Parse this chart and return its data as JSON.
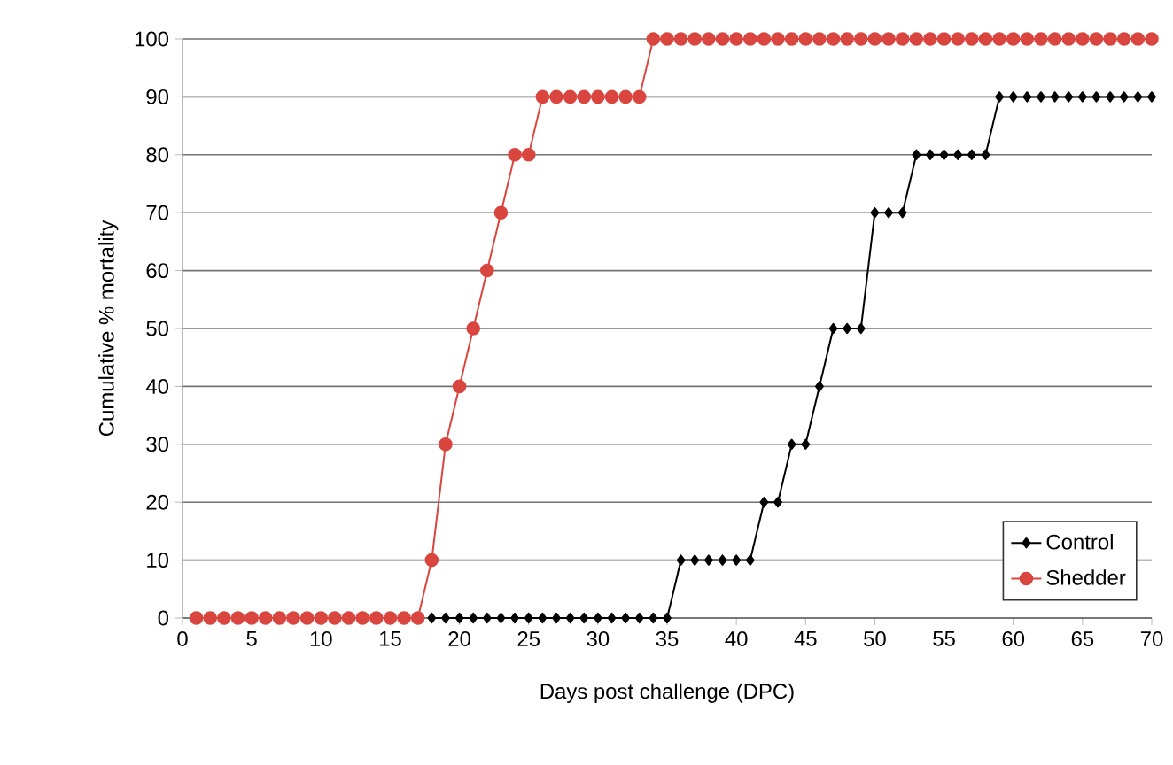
{
  "chart_data": {
    "type": "line",
    "xlabel": "Days post challenge (DPC)",
    "ylabel": "Cumulative % mortality",
    "x": [
      1,
      2,
      3,
      4,
      5,
      6,
      7,
      8,
      9,
      10,
      11,
      12,
      13,
      14,
      15,
      16,
      17,
      18,
      19,
      20,
      21,
      22,
      23,
      24,
      25,
      26,
      27,
      28,
      29,
      30,
      31,
      32,
      33,
      34,
      35,
      36,
      37,
      38,
      39,
      40,
      41,
      42,
      43,
      44,
      45,
      46,
      47,
      48,
      49,
      50,
      51,
      52,
      53,
      54,
      55,
      56,
      57,
      58,
      59,
      60,
      61,
      62,
      63,
      64,
      65,
      66,
      67,
      68,
      69,
      70
    ],
    "series": [
      {
        "name": "Control",
        "color": "#000000",
        "marker": "diamond",
        "values": [
          null,
          null,
          null,
          null,
          null,
          null,
          null,
          null,
          null,
          null,
          null,
          null,
          null,
          null,
          null,
          null,
          null,
          0,
          0,
          0,
          0,
          0,
          0,
          0,
          0,
          0,
          0,
          0,
          0,
          0,
          0,
          0,
          0,
          0,
          0,
          10,
          10,
          10,
          10,
          10,
          10,
          20,
          20,
          30,
          30,
          40,
          50,
          50,
          50,
          70,
          70,
          70,
          80,
          80,
          80,
          80,
          80,
          80,
          90,
          90,
          90,
          90,
          90,
          90,
          90,
          90,
          90,
          90,
          90,
          90
        ]
      },
      {
        "name": "Shedder",
        "color": "#d9453f",
        "marker": "circle",
        "values": [
          0,
          0,
          0,
          0,
          0,
          0,
          0,
          0,
          0,
          0,
          0,
          0,
          0,
          0,
          0,
          0,
          0,
          10,
          30,
          40,
          50,
          60,
          70,
          80,
          80,
          90,
          90,
          90,
          90,
          90,
          90,
          90,
          90,
          100,
          100,
          100,
          100,
          100,
          100,
          100,
          100,
          100,
          100,
          100,
          100,
          100,
          100,
          100,
          100,
          100,
          100,
          100,
          100,
          100,
          100,
          100,
          100,
          100,
          100,
          100,
          100,
          100,
          100,
          100,
          100,
          100,
          100,
          100,
          100,
          100
        ]
      }
    ],
    "xlim": [
      0,
      70
    ],
    "xticks": [
      0,
      5,
      10,
      15,
      20,
      25,
      30,
      35,
      40,
      45,
      50,
      55,
      60,
      65,
      70
    ],
    "ylim": [
      0,
      100
    ],
    "yticks": [
      0,
      10,
      20,
      30,
      40,
      50,
      60,
      70,
      80,
      90,
      100
    ],
    "grid": "y",
    "legend": "bottom right",
    "line_style": "solid"
  }
}
